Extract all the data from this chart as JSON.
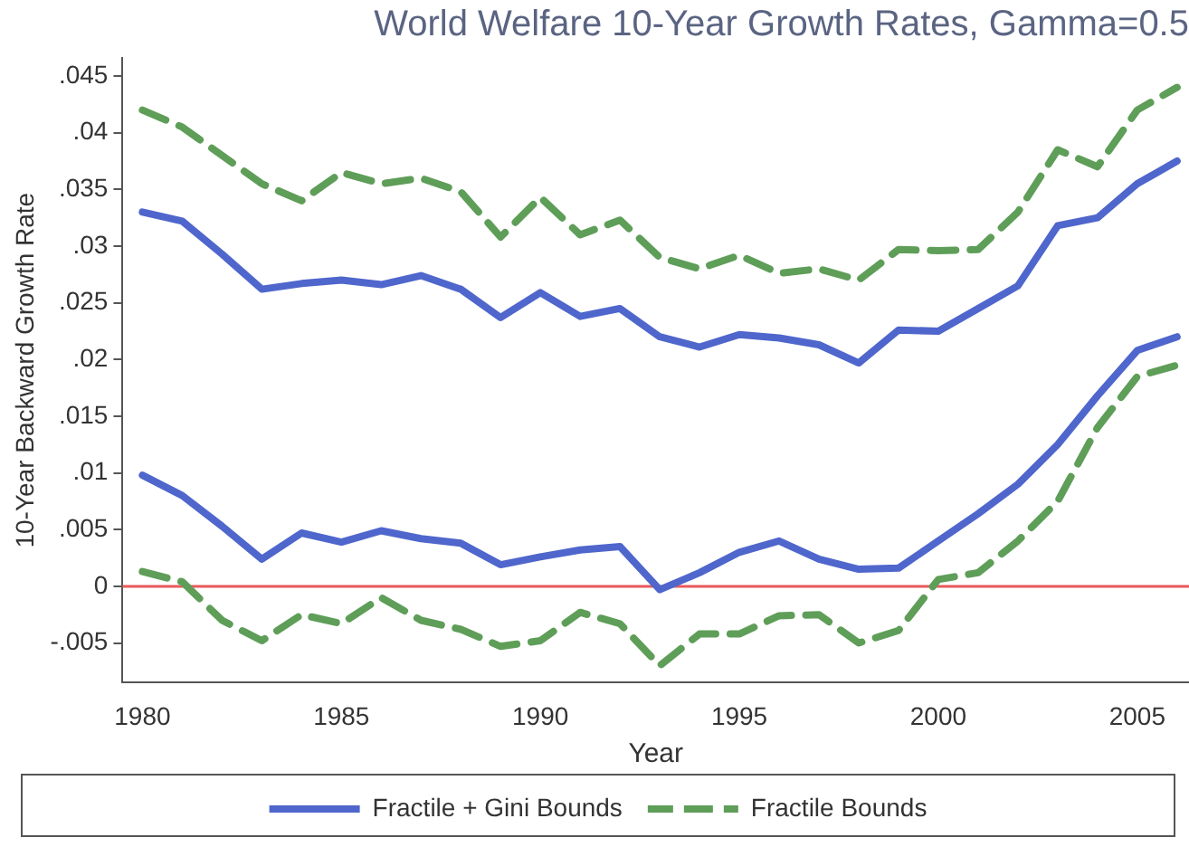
{
  "chart_data": {
    "type": "line",
    "title": "World Welfare 10-Year Growth Rates, Gamma=0.5",
    "xlabel": "Year",
    "ylabel": "10-Year Backward Growth Rate",
    "x": [
      1980,
      1981,
      1982,
      1983,
      1984,
      1985,
      1986,
      1987,
      1988,
      1989,
      1990,
      1991,
      1992,
      1993,
      1994,
      1995,
      1996,
      1997,
      1998,
      1999,
      2000,
      2001,
      2002,
      2003,
      2004,
      2005,
      2006
    ],
    "series": [
      {
        "name": "Fractile + Gini Bounds",
        "color": "#4f66cc",
        "line_style": "solid",
        "values": [
          0.033,
          0.0322,
          0.0293,
          0.0262,
          0.0267,
          0.027,
          0.0266,
          0.0274,
          0.0262,
          0.0237,
          0.0259,
          0.0238,
          0.0245,
          0.022,
          0.0211,
          0.0222,
          0.0219,
          0.0213,
          0.0197,
          0.0226,
          0.0225,
          0.0245,
          0.0265,
          0.0318,
          0.0325,
          0.0355,
          0.0375
        ]
      },
      {
        "color": "#4f66cc",
        "line_style": "solid",
        "values": [
          0.0098,
          0.008,
          0.0053,
          0.0024,
          0.0047,
          0.0039,
          0.0049,
          0.0042,
          0.0038,
          0.0019,
          0.0026,
          0.0032,
          0.0035,
          -0.0003,
          0.0012,
          0.003,
          0.004,
          0.0024,
          0.0015,
          0.0016,
          0.004,
          0.0064,
          0.009,
          0.0125,
          0.0168,
          0.0208,
          0.022
        ]
      },
      {
        "name": "Fractile Bounds",
        "color": "#5e9e58",
        "line_style": "dashed",
        "values": [
          0.042,
          0.0405,
          0.038,
          0.0355,
          0.034,
          0.0365,
          0.0355,
          0.036,
          0.0348,
          0.0308,
          0.0343,
          0.031,
          0.0323,
          0.029,
          0.028,
          0.0292,
          0.0276,
          0.028,
          0.027,
          0.0297,
          0.0296,
          0.0297,
          0.033,
          0.0385,
          0.037,
          0.042,
          0.044
        ]
      },
      {
        "color": "#5e9e58",
        "line_style": "dashed",
        "values": [
          0.0013,
          0.0004,
          -0.003,
          -0.0048,
          -0.0025,
          -0.0033,
          -0.001,
          -0.003,
          -0.0038,
          -0.0053,
          -0.0048,
          -0.0023,
          -0.0033,
          -0.007,
          -0.0042,
          -0.0042,
          -0.0026,
          -0.0025,
          -0.005,
          -0.0039,
          0.0006,
          0.0012,
          0.004,
          0.0075,
          0.014,
          0.0185,
          0.0195
        ]
      }
    ],
    "xlim": [
      1979.5,
      2006.3
    ],
    "xticks": [
      1980,
      1985,
      1990,
      1995,
      2000,
      2005
    ],
    "ylim": [
      -0.0085,
      0.0466
    ],
    "yticks": [
      {
        "value": -0.005,
        "label": "-.005"
      },
      0,
      {
        "value": 0.005,
        "label": ".005"
      },
      {
        "value": 0.01,
        "label": ".01"
      },
      {
        "value": 0.015,
        "label": ".015"
      },
      {
        "value": 0.02,
        "label": ".02"
      },
      {
        "value": 0.025,
        "label": ".025"
      },
      {
        "value": 0.03,
        "label": ".03"
      },
      {
        "value": 0.035,
        "label": ".035"
      },
      {
        "value": 0.04,
        "label": ".04"
      },
      {
        "value": 0.045,
        "label": ".045"
      }
    ],
    "ref_lines": [
      {
        "axis": "y",
        "value": 0,
        "color": "#e85a5a"
      }
    ],
    "grid": false,
    "legend": "bottom",
    "marker": "none"
  }
}
